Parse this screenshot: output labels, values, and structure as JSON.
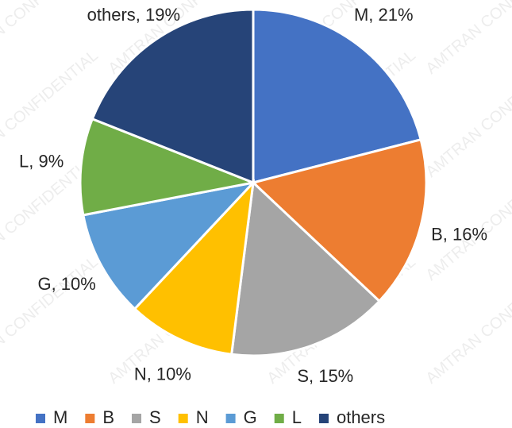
{
  "chart_data": {
    "type": "pie",
    "categories": [
      "M",
      "B",
      "S",
      "N",
      "G",
      "L",
      "others"
    ],
    "values": [
      21,
      16,
      15,
      10,
      10,
      9,
      19
    ],
    "value_labels": [
      "M, 21%",
      "B, 16%",
      "S, 15%",
      "N, 10%",
      "G, 10%",
      "L, 9%",
      "others, 19%"
    ],
    "colors": [
      "#4472c4",
      "#ed7d31",
      "#a5a5a5",
      "#ffc000",
      "#5b9bd5",
      "#70ad47",
      "#264478"
    ],
    "legend": "bottom",
    "watermark": "AMTRAN CONFIDENTIAL"
  }
}
